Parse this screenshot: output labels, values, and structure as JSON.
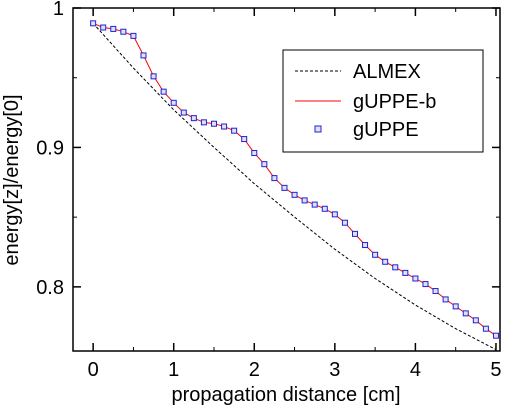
{
  "chart_data": {
    "type": "line",
    "xlabel": "propagation distance [cm]",
    "ylabel": "energy[z]/energy[0]",
    "xlim": [
      -0.25,
      5.05
    ],
    "ylim": [
      0.754,
      1.0
    ],
    "xticks": [
      0,
      1,
      2,
      3,
      4,
      5
    ],
    "yticks": [
      0.8,
      0.9,
      1
    ],
    "ytick_labels": [
      "0.8",
      "0.9",
      "1"
    ],
    "grid": false,
    "legend_position": "top-right",
    "series": [
      {
        "name": "ALMEX",
        "style": "dashed",
        "color": "#000000",
        "x": [
          0,
          0.5,
          1.0,
          1.5,
          2.0,
          2.5,
          3.0,
          3.5,
          4.0,
          4.5,
          5.0
        ],
        "y": [
          0.989,
          0.957,
          0.927,
          0.9,
          0.874,
          0.85,
          0.827,
          0.806,
          0.787,
          0.77,
          0.755
        ]
      },
      {
        "name": "gUPPE-b",
        "style": "solid",
        "color": "#ff0000",
        "x": [
          0,
          0.125,
          0.25,
          0.375,
          0.5,
          0.625,
          0.75,
          0.875,
          1.0,
          1.125,
          1.25,
          1.375,
          1.5,
          1.625,
          1.75,
          1.875,
          2.0,
          2.125,
          2.25,
          2.375,
          2.5,
          2.625,
          2.75,
          2.875,
          3.0,
          3.125,
          3.25,
          3.375,
          3.5,
          3.625,
          3.75,
          3.875,
          4.0,
          4.125,
          4.25,
          4.375,
          4.5,
          4.625,
          4.75,
          4.875,
          5.0
        ],
        "y": [
          0.989,
          0.986,
          0.985,
          0.983,
          0.98,
          0.966,
          0.951,
          0.94,
          0.932,
          0.925,
          0.921,
          0.918,
          0.917,
          0.915,
          0.912,
          0.906,
          0.896,
          0.888,
          0.878,
          0.871,
          0.866,
          0.862,
          0.859,
          0.856,
          0.852,
          0.846,
          0.838,
          0.83,
          0.823,
          0.818,
          0.814,
          0.81,
          0.806,
          0.802,
          0.797,
          0.791,
          0.786,
          0.781,
          0.776,
          0.77,
          0.765
        ]
      },
      {
        "name": "gUPPE",
        "style": "markers",
        "color": "#2222cc",
        "x": [
          0,
          0.125,
          0.25,
          0.375,
          0.5,
          0.625,
          0.75,
          0.875,
          1.0,
          1.125,
          1.25,
          1.375,
          1.5,
          1.625,
          1.75,
          1.875,
          2.0,
          2.125,
          2.25,
          2.375,
          2.5,
          2.625,
          2.75,
          2.875,
          3.0,
          3.125,
          3.25,
          3.375,
          3.5,
          3.625,
          3.75,
          3.875,
          4.0,
          4.125,
          4.25,
          4.375,
          4.5,
          4.625,
          4.75,
          4.875,
          5.0
        ],
        "y": [
          0.989,
          0.986,
          0.985,
          0.983,
          0.98,
          0.966,
          0.951,
          0.94,
          0.932,
          0.925,
          0.921,
          0.918,
          0.917,
          0.915,
          0.912,
          0.906,
          0.896,
          0.888,
          0.878,
          0.871,
          0.866,
          0.862,
          0.859,
          0.856,
          0.852,
          0.846,
          0.838,
          0.83,
          0.823,
          0.818,
          0.814,
          0.81,
          0.806,
          0.802,
          0.797,
          0.791,
          0.786,
          0.781,
          0.776,
          0.77,
          0.765
        ]
      }
    ]
  }
}
